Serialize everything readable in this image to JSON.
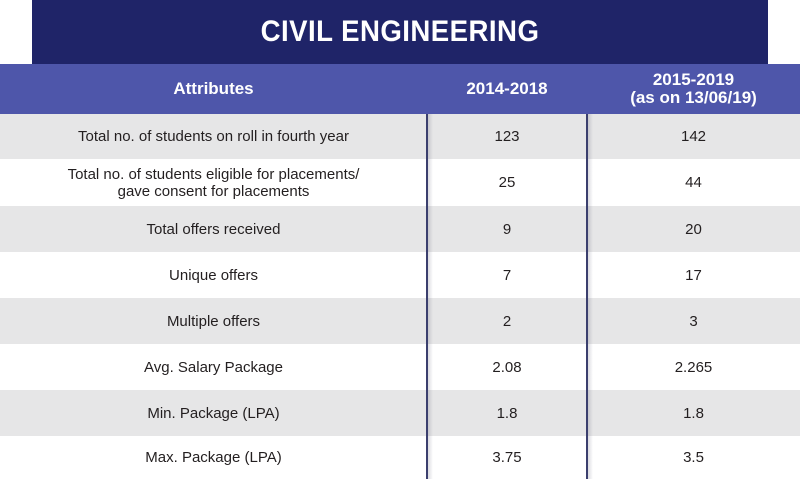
{
  "title": "CIVIL ENGINEERING",
  "table": {
    "headers": {
      "attributes": "Attributes",
      "col1": "2014-2018",
      "col2_line1": "2015-2019",
      "col2_line2": "(as on 13/06/19)"
    },
    "rows": [
      {
        "attribute": "Total no. of students on roll in fourth year",
        "y2014_2018": "123",
        "y2015_2019": "142"
      },
      {
        "attribute_line1": "Total no. of students eligible for placements/",
        "attribute_line2": "gave consent for placements",
        "y2014_2018": "25",
        "y2015_2019": "44"
      },
      {
        "attribute": "Total offers received",
        "y2014_2018": "9",
        "y2015_2019": "20"
      },
      {
        "attribute": "Unique offers",
        "y2014_2018": "7",
        "y2015_2019": "17"
      },
      {
        "attribute": "Multiple offers",
        "y2014_2018": "2",
        "y2015_2019": "3"
      },
      {
        "attribute": "Avg. Salary Package",
        "y2014_2018": "2.08",
        "y2015_2019": "2.265"
      },
      {
        "attribute": "Min. Package (LPA)",
        "y2014_2018": "1.8",
        "y2015_2019": "1.8"
      },
      {
        "attribute": "Max. Package (LPA)",
        "y2014_2018": "3.75",
        "y2015_2019": "3.5"
      }
    ]
  },
  "colors": {
    "title_bg": "#1f2468",
    "header_bg": "#4e56aa",
    "row_shade": "#e6e6e7",
    "row_plain": "#ffffff",
    "text": "#231f20"
  }
}
